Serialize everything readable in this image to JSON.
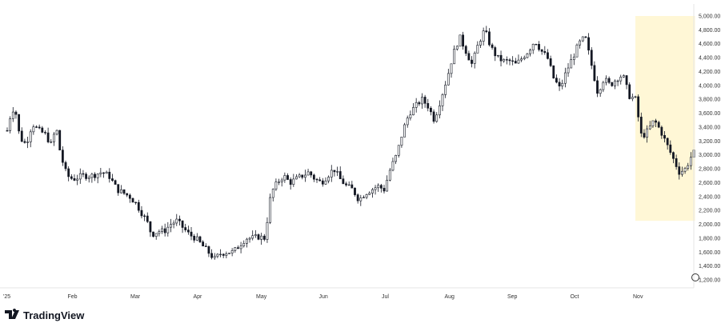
{
  "brand": {
    "name": "TradingView"
  },
  "colors": {
    "candle": "#131722",
    "highlight": "#fff7d6",
    "axis_line": "#e6e6e6",
    "text": "#333333"
  },
  "chart_data": {
    "type": "candlestick",
    "title": "",
    "xlabel": "",
    "ylabel": "",
    "ylim": [
      1200,
      5000
    ],
    "grid": false,
    "y_ticks": [
      "1,200.00",
      "1,400.00",
      "1,600.00",
      "1,800.00",
      "2,000.00",
      "2,200.00",
      "2,400.00",
      "2,600.00",
      "2,800.00",
      "3,000.00",
      "3,200.00",
      "3,400.00",
      "3,600.00",
      "3,800.00",
      "4,000.00",
      "4,200.00",
      "4,400.00",
      "4,600.00",
      "4,800.00",
      "5,000.00"
    ],
    "x_ticks": [
      {
        "label": "'25",
        "month": 0
      },
      {
        "label": "Feb",
        "month": 1
      },
      {
        "label": "Mar",
        "month": 2
      },
      {
        "label": "Apr",
        "month": 3
      },
      {
        "label": "May",
        "month": 4
      },
      {
        "label": "Jun",
        "month": 5
      },
      {
        "label": "Jul",
        "month": 6
      },
      {
        "label": "Aug",
        "month": 7
      },
      {
        "label": "Sep",
        "month": 8
      },
      {
        "label": "Oct",
        "month": 9
      },
      {
        "label": "Nov",
        "month": 10
      }
    ],
    "highlight": {
      "start_month": 10,
      "end_month": 10.95,
      "y_low": 2050,
      "y_high": 5000
    },
    "price_path": [
      [
        0.0,
        3350
      ],
      [
        0.06,
        3600
      ],
      [
        0.12,
        3700
      ],
      [
        0.2,
        3250
      ],
      [
        0.3,
        3150
      ],
      [
        0.4,
        3450
      ],
      [
        0.5,
        3350
      ],
      [
        0.6,
        3300
      ],
      [
        0.7,
        3150
      ],
      [
        0.78,
        3400
      ],
      [
        0.85,
        3000
      ],
      [
        0.95,
        2700
      ],
      [
        1.05,
        2650
      ],
      [
        1.2,
        2700
      ],
      [
        1.35,
        2700
      ],
      [
        1.5,
        2750
      ],
      [
        1.62,
        2700
      ],
      [
        1.75,
        2500
      ],
      [
        1.85,
        2450
      ],
      [
        1.95,
        2400
      ],
      [
        2.05,
        2300
      ],
      [
        2.15,
        2150
      ],
      [
        2.22,
        2050
      ],
      [
        2.3,
        1850
      ],
      [
        2.4,
        1900
      ],
      [
        2.5,
        1900
      ],
      [
        2.6,
        2000
      ],
      [
        2.7,
        2050
      ],
      [
        2.8,
        1950
      ],
      [
        2.9,
        1850
      ],
      [
        3.0,
        1800
      ],
      [
        3.1,
        1700
      ],
      [
        3.2,
        1600
      ],
      [
        3.3,
        1500
      ],
      [
        3.4,
        1580
      ],
      [
        3.5,
        1600
      ],
      [
        3.6,
        1600
      ],
      [
        3.7,
        1700
      ],
      [
        3.8,
        1800
      ],
      [
        3.9,
        1800
      ],
      [
        4.0,
        1820
      ],
      [
        4.1,
        1800
      ],
      [
        4.2,
        2450
      ],
      [
        4.3,
        2600
      ],
      [
        4.4,
        2700
      ],
      [
        4.5,
        2600
      ],
      [
        4.6,
        2650
      ],
      [
        4.7,
        2700
      ],
      [
        4.8,
        2750
      ],
      [
        4.9,
        2650
      ],
      [
        5.0,
        2600
      ],
      [
        5.1,
        2700
      ],
      [
        5.2,
        2800
      ],
      [
        5.3,
        2650
      ],
      [
        5.4,
        2550
      ],
      [
        5.5,
        2500
      ],
      [
        5.6,
        2350
      ],
      [
        5.7,
        2450
      ],
      [
        5.8,
        2500
      ],
      [
        5.9,
        2550
      ],
      [
        6.0,
        2500
      ],
      [
        6.1,
        2800
      ],
      [
        6.2,
        3000
      ],
      [
        6.3,
        3350
      ],
      [
        6.4,
        3600
      ],
      [
        6.5,
        3700
      ],
      [
        6.6,
        3800
      ],
      [
        6.7,
        3700
      ],
      [
        6.8,
        3500
      ],
      [
        6.9,
        3800
      ],
      [
        7.0,
        4100
      ],
      [
        7.1,
        4450
      ],
      [
        7.2,
        4700
      ],
      [
        7.3,
        4500
      ],
      [
        7.4,
        4300
      ],
      [
        7.5,
        4600
      ],
      [
        7.6,
        4800
      ],
      [
        7.7,
        4550
      ],
      [
        7.8,
        4400
      ],
      [
        7.9,
        4350
      ],
      [
        8.0,
        4350
      ],
      [
        8.1,
        4300
      ],
      [
        8.2,
        4400
      ],
      [
        8.3,
        4500
      ],
      [
        8.4,
        4650
      ],
      [
        8.5,
        4500
      ],
      [
        8.6,
        4400
      ],
      [
        8.7,
        4100
      ],
      [
        8.8,
        3950
      ],
      [
        8.9,
        4200
      ],
      [
        9.0,
        4400
      ],
      [
        9.1,
        4600
      ],
      [
        9.2,
        4700
      ],
      [
        9.3,
        4300
      ],
      [
        9.4,
        3900
      ],
      [
        9.5,
        4100
      ],
      [
        9.6,
        4000
      ],
      [
        9.7,
        4100
      ],
      [
        9.8,
        4150
      ],
      [
        9.9,
        3850
      ],
      [
        10.0,
        3800
      ],
      [
        10.1,
        3250
      ],
      [
        10.2,
        3350
      ],
      [
        10.3,
        3500
      ],
      [
        10.4,
        3350
      ],
      [
        10.5,
        3150
      ],
      [
        10.6,
        2950
      ],
      [
        10.7,
        2750
      ],
      [
        10.8,
        2800
      ],
      [
        10.9,
        3000
      ],
      [
        10.95,
        3050
      ]
    ]
  }
}
